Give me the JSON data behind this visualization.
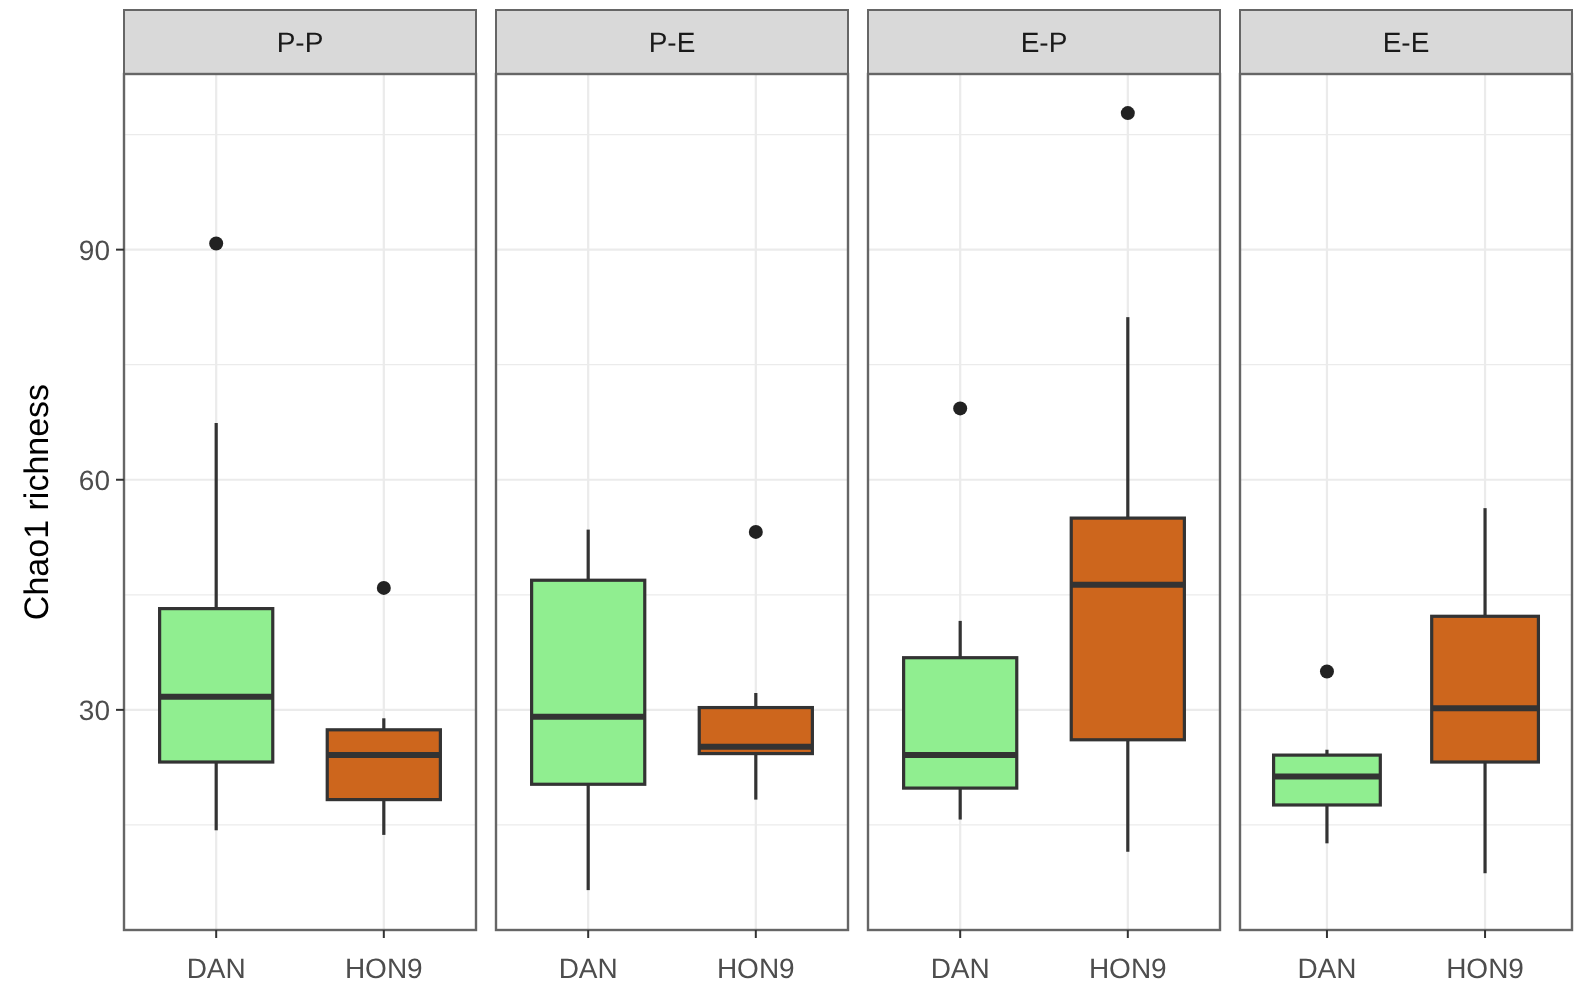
{
  "chart_data": [
    {
      "type": "box",
      "title": "P-P",
      "ylabel": "Chao1 richness",
      "categories": [
        "DAN",
        "HON9"
      ],
      "colors": [
        "#90ee90",
        "#cd661d"
      ],
      "ylim": [
        1.3,
        112.9
      ],
      "yticks": [
        {
          "value": 15,
          "label": null
        },
        30,
        {
          "value": 45,
          "label": null
        },
        60,
        {
          "value": 75,
          "label": null
        },
        90,
        {
          "value": 105,
          "label": null
        }
      ],
      "grid": true,
      "boxes": [
        {
          "low": 14.3,
          "q1": 23.2,
          "median": 31.7,
          "q3": 43.2,
          "high": 67.4,
          "outliers": [
            90.8
          ]
        },
        {
          "low": 13.7,
          "q1": 18.3,
          "median": 24.1,
          "q3": 27.4,
          "high": 28.9,
          "outliers": [
            45.9
          ]
        }
      ]
    },
    {
      "type": "box",
      "title": "P-E",
      "categories": [
        "DAN",
        "HON9"
      ],
      "colors": [
        "#90ee90",
        "#cd661d"
      ],
      "ylim": [
        1.3,
        112.9
      ],
      "yticks": [
        {
          "value": 15,
          "label": null
        },
        30,
        {
          "value": 45,
          "label": null
        },
        60,
        {
          "value": 75,
          "label": null
        },
        90,
        {
          "value": 105,
          "label": null
        }
      ],
      "grid": true,
      "tick_labels": "x",
      "boxes": [
        {
          "low": 6.5,
          "q1": 20.3,
          "median": 29.1,
          "q3": 46.9,
          "high": 53.5
        },
        {
          "low": 18.3,
          "q1": 24.3,
          "median": 25.2,
          "q3": 30.3,
          "high": 32.2,
          "outliers": [
            53.2
          ]
        }
      ]
    },
    {
      "type": "box",
      "title": "E-P",
      "categories": [
        "DAN",
        "HON9"
      ],
      "colors": [
        "#90ee90",
        "#cd661d"
      ],
      "ylim": [
        1.3,
        112.9
      ],
      "yticks": [
        {
          "value": 15,
          "label": null
        },
        30,
        {
          "value": 45,
          "label": null
        },
        60,
        {
          "value": 75,
          "label": null
        },
        90,
        {
          "value": 105,
          "label": null
        }
      ],
      "grid": true,
      "tick_labels": "x",
      "boxes": [
        {
          "low": 15.7,
          "q1": 19.8,
          "median": 24.1,
          "q3": 36.8,
          "high": 41.6,
          "outliers": [
            69.3
          ]
        },
        {
          "low": 11.5,
          "q1": 26.1,
          "median": 46.3,
          "q3": 55,
          "high": 81.2,
          "outliers": [
            107.8
          ]
        }
      ]
    },
    {
      "type": "box",
      "title": "E-E",
      "categories": [
        "DAN",
        "HON9"
      ],
      "colors": [
        "#90ee90",
        "#cd661d"
      ],
      "ylim": [
        1.3,
        112.9
      ],
      "yticks": [
        {
          "value": 15,
          "label": null
        },
        30,
        {
          "value": 45,
          "label": null
        },
        60,
        {
          "value": 75,
          "label": null
        },
        90,
        {
          "value": 105,
          "label": null
        }
      ],
      "grid": true,
      "tick_labels": "x",
      "boxes": [
        {
          "low": 12.6,
          "q1": 17.6,
          "median": 21.3,
          "q3": 24.1,
          "high": 24.8,
          "outliers": [
            35
          ]
        },
        {
          "low": 8.7,
          "q1": 23.2,
          "median": 30.2,
          "q3": 42.2,
          "high": 56.3
        }
      ]
    }
  ]
}
